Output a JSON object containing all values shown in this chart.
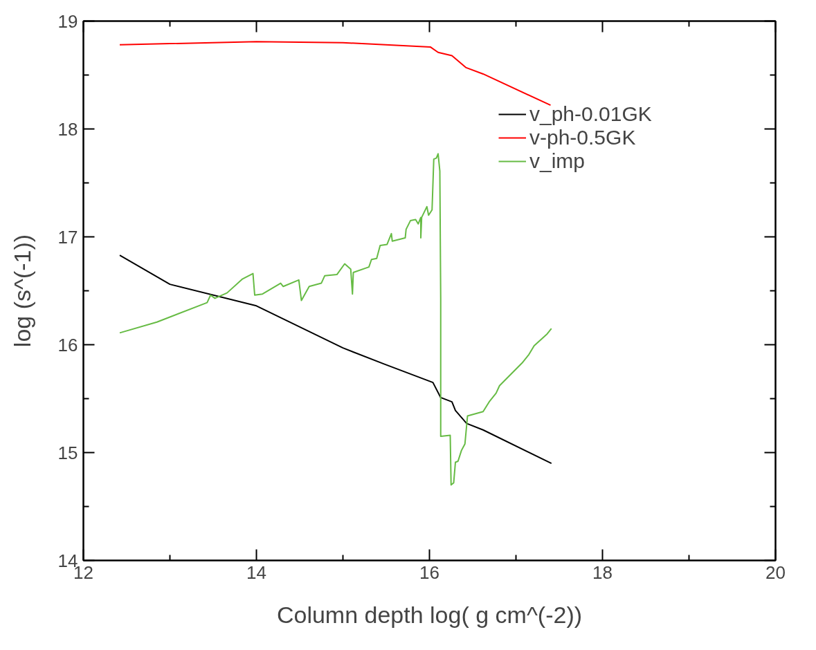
{
  "chart_data": {
    "type": "line",
    "xlabel": "Column depth log( g cm^(-2))",
    "ylabel": "log (s^(-1))",
    "xlim": [
      12,
      20
    ],
    "ylim": [
      14,
      19
    ],
    "xticks": [
      12,
      {
        "value": 13,
        "label": null
      },
      14,
      {
        "value": 15,
        "label": null
      },
      16,
      {
        "value": 17,
        "label": null
      },
      18,
      {
        "value": 19,
        "label": null
      },
      20
    ],
    "yticks": [
      14,
      {
        "value": 14.5,
        "label": null
      },
      15,
      {
        "value": 15.5,
        "label": null
      },
      16,
      {
        "value": 16.5,
        "label": null
      },
      17,
      {
        "value": 17.5,
        "label": null
      },
      18,
      {
        "value": 18.5,
        "label": null
      },
      19
    ],
    "grid": false,
    "legend": "top right",
    "marker": "none",
    "line_style": "solid",
    "series": [
      {
        "name": "v_ph-0.01GK",
        "color": "#000000",
        "x": [
          12.42,
          13.0,
          14.0,
          15.0,
          15.48,
          16.04,
          16.13,
          16.26,
          16.3,
          16.43,
          16.62,
          17.41
        ],
        "values": [
          16.83,
          16.56,
          16.36,
          15.97,
          15.82,
          15.65,
          15.51,
          15.47,
          15.39,
          15.27,
          15.21,
          14.9
        ]
      },
      {
        "name": "v-ph-0.5GK",
        "color": "#ff0000",
        "x": [
          12.42,
          14.0,
          15.0,
          16.01,
          16.1,
          16.26,
          16.42,
          16.62,
          17.4
        ],
        "values": [
          18.78,
          18.81,
          18.8,
          18.76,
          18.71,
          18.68,
          18.57,
          18.51,
          18.22
        ]
      },
      {
        "name": "v_imp",
        "color": "#66bb44",
        "x": [
          12.42,
          12.85,
          13.43,
          13.47,
          13.52,
          13.66,
          13.84,
          13.96,
          13.98,
          14.07,
          14.28,
          14.31,
          14.49,
          14.52,
          14.61,
          14.75,
          14.79,
          14.93,
          15.02,
          15.09,
          15.11,
          15.12,
          15.3,
          15.33,
          15.39,
          15.43,
          15.51,
          15.56,
          15.57,
          15.72,
          15.73,
          15.78,
          15.84,
          15.87,
          15.9,
          15.9,
          15.91,
          15.97,
          15.99,
          16.03,
          16.05,
          16.08,
          16.1,
          16.12,
          16.13,
          16.13,
          16.24,
          16.25,
          16.28,
          16.3,
          16.33,
          16.37,
          16.41,
          16.44,
          16.62,
          16.69,
          16.77,
          16.81,
          17.07,
          17.15,
          17.21,
          17.36,
          17.41
        ],
        "values": [
          16.11,
          16.21,
          16.39,
          16.46,
          16.43,
          16.48,
          16.61,
          16.66,
          16.46,
          16.47,
          16.57,
          16.54,
          16.6,
          16.41,
          16.54,
          16.57,
          16.64,
          16.65,
          16.75,
          16.7,
          16.47,
          16.67,
          16.72,
          16.79,
          16.8,
          16.92,
          16.93,
          17.03,
          16.96,
          16.99,
          17.07,
          17.15,
          17.16,
          17.12,
          17.18,
          16.99,
          17.18,
          17.28,
          17.2,
          17.25,
          17.72,
          17.73,
          17.77,
          17.61,
          16.43,
          15.15,
          15.16,
          14.7,
          14.72,
          14.91,
          14.92,
          15.02,
          15.08,
          15.34,
          15.38,
          15.47,
          15.55,
          15.62,
          15.83,
          15.91,
          15.99,
          16.1,
          16.15
        ]
      }
    ]
  }
}
